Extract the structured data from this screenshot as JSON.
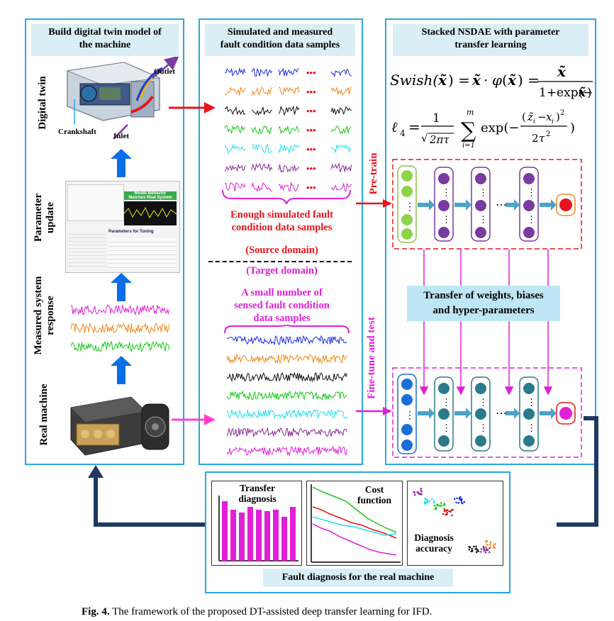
{
  "caption": {
    "label": "Fig. 4.",
    "text": "The framework of the proposed DT-assisted deep transfer learning for IFD."
  },
  "left_panel": {
    "title_line1": "Build digital twin model of",
    "title_line2": "the machine",
    "stages": [
      "Digital twin",
      "Parameter update",
      "Measured system response",
      "Real machine"
    ],
    "dt_labels": {
      "outlet": "Outlet",
      "inlet": "Inlet",
      "crankshaft": "Crankshaft"
    },
    "software_texts": {
      "banner_line1": "Model Behavior",
      "banner_line2": "Matches Real System",
      "params": "Parameters for Tuning"
    }
  },
  "middle_panel": {
    "title_line1": "Simulated and measured",
    "title_line2": "fault condition data samples",
    "ellipsis": "•••",
    "enough_line1": "Enough simulated fault",
    "enough_line2": "condition data samples",
    "source_domain": "(Source domain)",
    "target_domain": "(Target domain)",
    "small_line1": "A small number of",
    "small_line2": "sensed fault condition",
    "small_line3": "data samples"
  },
  "right_panel": {
    "title_line1": "Stacked NSDAE with parameter",
    "title_line2": "transfer learning",
    "pretrain": "Pre-train",
    "finetune": "Fine-tune and test",
    "transfer_line1": "Transfer of weights, biases",
    "transfer_line2": "and hyper-parameters",
    "dots": "⋯"
  },
  "bottom_panel": {
    "title": "Fault diagnosis for the real machine",
    "chart1_title_line1": "Transfer",
    "chart1_title_line2": "diagnosis",
    "chart2_title_line1": "Cost",
    "chart2_title_line2": "function",
    "chart3_title_line1": "Diagnosis",
    "chart3_title_line2": "accuracy"
  },
  "colors": {
    "panel_border": "#2aa7e0",
    "header_bg": "#daeef6",
    "red": "#e8141b",
    "magenta": "#e020d8",
    "navy": "#1f3864",
    "blue_arrow": "#0a6ee8",
    "signal_colors": [
      "#1a2ee0",
      "#f08a1c",
      "#111111",
      "#18c818",
      "#22e0f0",
      "#8a2a9a",
      "#e020d8"
    ]
  }
}
